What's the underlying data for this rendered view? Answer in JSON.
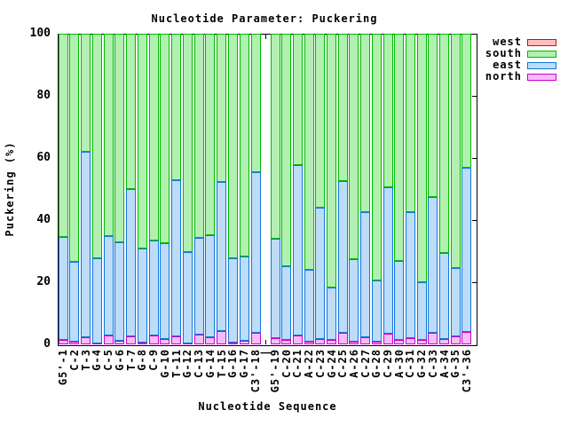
{
  "title": "Nucleotide Parameter: Puckering",
  "axes": {
    "ylabel": "Puckering (%)",
    "xlabel": "Nucleotide Sequence",
    "yticks": [
      0,
      20,
      40,
      60,
      80,
      100
    ],
    "separator_label": "|"
  },
  "legend": {
    "items": [
      {
        "label": "west",
        "series": "west"
      },
      {
        "label": "south",
        "series": "south"
      },
      {
        "label": "east",
        "series": "east"
      },
      {
        "label": "north",
        "series": "north"
      }
    ]
  },
  "chart_data": {
    "type": "bar",
    "stacked": true,
    "title": "Nucleotide Parameter: Puckering",
    "xlabel": "Nucleotide Sequence",
    "ylabel": "Puckering (%)",
    "ylim": [
      0,
      100
    ],
    "grid": false,
    "legend_position": "outside-right",
    "separator_after_index": 17,
    "categories": [
      "G5'-1",
      "C-2",
      "T-3",
      "G-4",
      "C-5",
      "G-6",
      "T-7",
      "G-8",
      "C-9",
      "G-10",
      "T-11",
      "G-12",
      "C-13",
      "G-14",
      "T-15",
      "G-16",
      "G-17",
      "C3'-18",
      "G5'-19",
      "C-20",
      "C-21",
      "A-22",
      "C-23",
      "G-24",
      "C-25",
      "A-26",
      "C-27",
      "G-28",
      "C-29",
      "A-30",
      "C-31",
      "G-32",
      "C-33",
      "A-34",
      "G-35",
      "C3'-36"
    ],
    "stack_order_bottom_to_top": [
      "north",
      "east",
      "south",
      "west"
    ],
    "series": [
      {
        "name": "north",
        "fill": "#f6bcf6",
        "border": "#cc00cc",
        "values": [
          1.5,
          1.0,
          2.2,
          0.3,
          3.0,
          1.2,
          2.6,
          0.7,
          3.0,
          1.7,
          2.5,
          0.3,
          3.1,
          2.4,
          4.4,
          0.6,
          1.1,
          3.7,
          2.0,
          1.3,
          2.8,
          1.0,
          1.7,
          1.3,
          3.7,
          1.0,
          2.2,
          0.9,
          3.4,
          1.5,
          2.0,
          1.5,
          3.7,
          1.8,
          2.5,
          4.1
        ]
      },
      {
        "name": "east",
        "fill": "#bcdcf8",
        "border": "#1177dd",
        "values": [
          33.1,
          25.5,
          59.8,
          27.4,
          32.0,
          31.7,
          47.5,
          30.3,
          30.3,
          30.9,
          50.3,
          29.3,
          31.3,
          32.7,
          47.8,
          27.1,
          27.1,
          51.7,
          32.1,
          23.8,
          54.9,
          22.9,
          42.2,
          17.0,
          48.8,
          26.5,
          40.5,
          19.6,
          47.2,
          25.4,
          40.5,
          18.5,
          43.7,
          27.7,
          22.0,
          52.7
        ]
      },
      {
        "name": "south",
        "fill": "#b2f0b2",
        "border": "#00bb00",
        "values": [
          65.4,
          73.5,
          38.0,
          72.3,
          65.0,
          67.1,
          49.9,
          69.0,
          66.7,
          67.4,
          47.2,
          70.4,
          65.6,
          64.9,
          47.8,
          72.3,
          71.8,
          44.6,
          65.9,
          74.9,
          42.3,
          76.1,
          56.1,
          81.7,
          47.5,
          72.5,
          57.3,
          79.5,
          49.4,
          73.1,
          57.5,
          80.0,
          52.6,
          70.5,
          75.5,
          43.2
        ]
      },
      {
        "name": "west",
        "fill": "#ffbdbd",
        "border": "#ee0000",
        "values": [
          0,
          0,
          0,
          0,
          0,
          0,
          0,
          0,
          0,
          0,
          0,
          0,
          0,
          0,
          0,
          0,
          0,
          0,
          0,
          0,
          0,
          0,
          0,
          0,
          0,
          0,
          0,
          0,
          0,
          0,
          0,
          0,
          0,
          0,
          0,
          0
        ]
      }
    ]
  }
}
